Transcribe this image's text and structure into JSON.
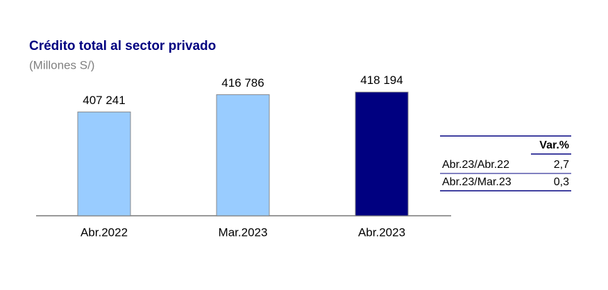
{
  "chart_data": {
    "type": "bar",
    "title": "Crédito total al sector privado",
    "subtitle": "(Millones S/)",
    "categories": [
      "Abr.2022",
      "Mar.2023",
      "Abr.2023"
    ],
    "values": [
      407241,
      416786,
      418194
    ],
    "value_labels": [
      "407 241",
      "416 786",
      "418 194"
    ],
    "colors": [
      "#99ccff",
      "#99ccff",
      "#000080"
    ],
    "ylim": [
      350000,
      420000
    ]
  },
  "table": {
    "header": "Var.%",
    "rows": [
      [
        "Abr.23/Abr.22",
        "2,7"
      ],
      [
        "Abr.23/Mar.23",
        "0,3"
      ]
    ]
  }
}
